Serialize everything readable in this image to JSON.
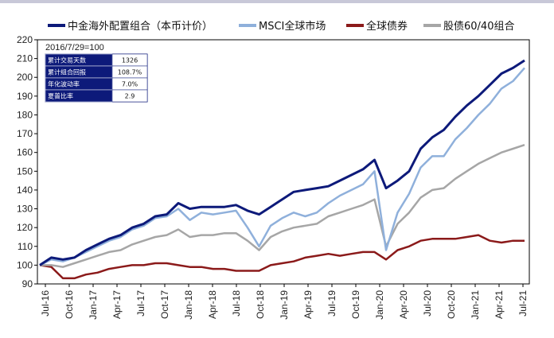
{
  "chart_data": {
    "type": "line",
    "annotation": "2016/7/29=100",
    "ylim": [
      90,
      220
    ],
    "yticks": [
      90,
      100,
      110,
      120,
      130,
      140,
      150,
      160,
      170,
      180,
      190,
      200,
      210,
      220
    ],
    "xticks": [
      "Jul-16",
      "Oct-16",
      "Jan-17",
      "Apr-17",
      "Jul-17",
      "Oct-17",
      "Jan-18",
      "Apr-18",
      "Jul-18",
      "Oct-18",
      "Jan-19",
      "Apr-19",
      "Jul-19",
      "Oct-19",
      "Jan-20",
      "Apr-20",
      "Jul-20",
      "Oct-20",
      "Jan-21",
      "Apr-21",
      "Jul-21"
    ],
    "stats_table": [
      {
        "label": "累计交易天数",
        "value": "1326"
      },
      {
        "label": "累计组合回报",
        "value": "108.7%"
      },
      {
        "label": "年化波动率",
        "value": "7.0%"
      },
      {
        "label": "夏普比率",
        "value": "2.9"
      }
    ],
    "series": [
      {
        "name": "中金海外配置组合（本币计价）",
        "color": "#0d1a7a",
        "values": [
          100,
          104,
          103,
          104,
          108,
          111,
          114,
          116,
          120,
          122,
          126,
          127,
          133,
          130,
          131,
          131,
          131,
          132,
          129,
          127,
          131,
          135,
          139,
          140,
          141,
          142,
          145,
          148,
          151,
          156,
          141,
          145,
          150,
          162,
          168,
          172,
          179,
          185,
          190,
          196,
          202,
          205,
          209
        ]
      },
      {
        "name": "MSCI全球市场",
        "color": "#8fb0db",
        "values": [
          100,
          103,
          102,
          104,
          107,
          110,
          113,
          115,
          119,
          121,
          125,
          126,
          130,
          124,
          128,
          127,
          128,
          129,
          120,
          110,
          121,
          125,
          128,
          126,
          128,
          133,
          137,
          140,
          143,
          150,
          108,
          128,
          138,
          152,
          158,
          158,
          167,
          173,
          180,
          186,
          194,
          198,
          205
        ]
      },
      {
        "name": "全球债券",
        "color": "#8b1a1a",
        "values": [
          100,
          99,
          93,
          93,
          95,
          96,
          98,
          99,
          100,
          100,
          101,
          101,
          100,
          99,
          99,
          98,
          98,
          97,
          97,
          97,
          100,
          101,
          102,
          104,
          105,
          106,
          105,
          106,
          107,
          107,
          103,
          108,
          110,
          113,
          114,
          114,
          114,
          115,
          116,
          113,
          112,
          113,
          113
        ]
      },
      {
        "name": "股债60/40组合",
        "color": "#a6a6a6",
        "values": [
          100,
          100,
          99,
          101,
          103,
          105,
          107,
          108,
          111,
          113,
          115,
          116,
          119,
          115,
          116,
          116,
          117,
          117,
          113,
          108,
          115,
          118,
          120,
          121,
          122,
          126,
          128,
          130,
          132,
          135,
          110,
          122,
          128,
          136,
          140,
          141,
          146,
          150,
          154,
          157,
          160,
          162,
          164
        ]
      }
    ]
  }
}
